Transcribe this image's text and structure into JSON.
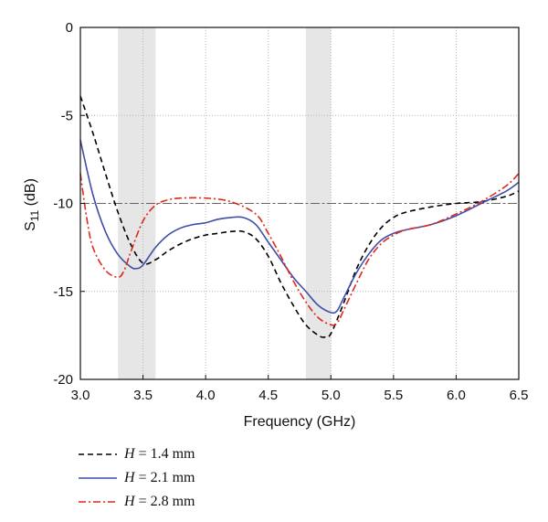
{
  "chart_data": {
    "type": "line",
    "xlabel": "Frequency (GHz)",
    "ylabel_main": "S",
    "ylabel_sub": "11",
    "ylabel_unit": " (dB)",
    "xlim": [
      3.0,
      6.5
    ],
    "ylim": [
      -20,
      0
    ],
    "x_ticks": [
      "3.0",
      "3.5",
      "4.0",
      "4.5",
      "5.0",
      "5.5",
      "6.0",
      "6.5"
    ],
    "y_ticks": [
      "0",
      "-5",
      "-10",
      "-15",
      "-20"
    ],
    "grid": "dotted",
    "reference_line": {
      "y": -10,
      "style": "dash-dot",
      "color": "#666666"
    },
    "shaded_bands": [
      {
        "x": [
          3.3,
          3.6
        ]
      },
      {
        "x": [
          4.8,
          5.0
        ]
      }
    ],
    "legend_position": "below",
    "series": [
      {
        "name": "H = 1.4 mm",
        "label_var": "H",
        "label_rest": " = 1.4 mm",
        "color": "#000000",
        "dash": "dashed",
        "x": [
          3.0,
          3.1,
          3.2,
          3.3,
          3.4,
          3.5,
          3.6,
          3.7,
          3.8,
          3.9,
          4.0,
          4.1,
          4.2,
          4.3,
          4.4,
          4.5,
          4.6,
          4.7,
          4.8,
          4.9,
          4.95,
          5.0,
          5.1,
          5.2,
          5.3,
          5.4,
          5.5,
          5.6,
          5.8,
          6.0,
          6.2,
          6.4,
          6.5
        ],
        "y": [
          -3.9,
          -6.0,
          -8.3,
          -10.5,
          -12.3,
          -13.4,
          -13.2,
          -12.7,
          -12.3,
          -12.0,
          -11.8,
          -11.7,
          -11.6,
          -11.6,
          -12.0,
          -13.0,
          -14.5,
          -15.8,
          -16.9,
          -17.5,
          -17.6,
          -17.4,
          -15.7,
          -13.8,
          -12.4,
          -11.4,
          -10.8,
          -10.5,
          -10.2,
          -10.0,
          -9.9,
          -9.6,
          -9.3
        ]
      },
      {
        "name": "H = 2.1 mm",
        "label_var": "H",
        "label_rest": " = 2.1 mm",
        "color": "#3f4ea6",
        "dash": "solid",
        "x": [
          3.0,
          3.1,
          3.2,
          3.3,
          3.4,
          3.45,
          3.5,
          3.6,
          3.7,
          3.8,
          3.9,
          4.0,
          4.1,
          4.2,
          4.3,
          4.4,
          4.5,
          4.6,
          4.7,
          4.8,
          4.9,
          5.0,
          5.05,
          5.1,
          5.2,
          5.3,
          5.4,
          5.5,
          5.6,
          5.8,
          6.0,
          6.2,
          6.4,
          6.5
        ],
        "y": [
          -6.4,
          -9.5,
          -11.6,
          -12.9,
          -13.6,
          -13.7,
          -13.5,
          -12.5,
          -11.8,
          -11.4,
          -11.2,
          -11.1,
          -10.9,
          -10.8,
          -10.8,
          -11.2,
          -12.2,
          -13.2,
          -14.2,
          -15.0,
          -15.8,
          -16.2,
          -16.1,
          -15.4,
          -14.0,
          -12.9,
          -12.1,
          -11.7,
          -11.5,
          -11.2,
          -10.7,
          -10.0,
          -9.3,
          -8.8
        ]
      },
      {
        "name": "H = 2.8 mm",
        "label_var": "H",
        "label_rest": " = 2.8 mm",
        "color": "#e0271b",
        "dash": "dash-dot",
        "x": [
          3.0,
          3.05,
          3.1,
          3.2,
          3.3,
          3.35,
          3.4,
          3.5,
          3.6,
          3.7,
          3.8,
          4.0,
          4.2,
          4.4,
          4.5,
          4.6,
          4.7,
          4.8,
          4.9,
          5.0,
          5.05,
          5.1,
          5.2,
          5.3,
          5.4,
          5.5,
          5.6,
          5.8,
          6.0,
          6.2,
          6.4,
          6.5
        ],
        "y": [
          -8.3,
          -10.8,
          -12.5,
          -13.8,
          -14.2,
          -13.8,
          -12.8,
          -11.0,
          -10.1,
          -9.8,
          -9.7,
          -9.7,
          -9.9,
          -10.6,
          -11.7,
          -13.0,
          -14.4,
          -15.6,
          -16.5,
          -16.9,
          -16.8,
          -16.1,
          -14.6,
          -13.2,
          -12.3,
          -11.8,
          -11.5,
          -11.2,
          -10.6,
          -9.9,
          -9.0,
          -8.3
        ]
      }
    ]
  }
}
